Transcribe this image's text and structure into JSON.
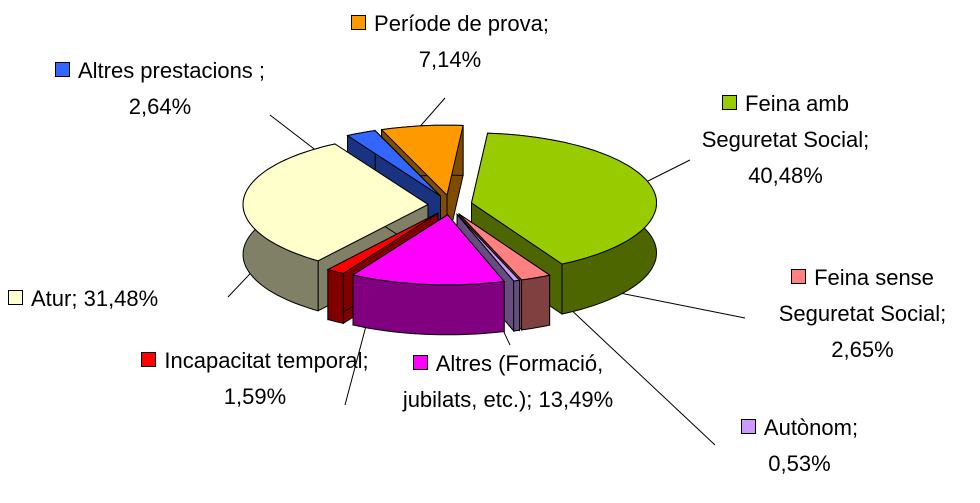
{
  "chart_data": {
    "type": "pie",
    "three_d": true,
    "exploded": true,
    "categories": [
      "Feina amb Seguretat Social;",
      "Feina sense Seguretat Social;",
      "Autònom;",
      "Altres (Formació, jubilats, etc.);",
      "Incapacitat temporal;",
      "Atur;",
      "Altres prestacions ;",
      "Període de prova;"
    ],
    "values": [
      40.48,
      2.65,
      0.53,
      13.49,
      1.59,
      31.48,
      2.64,
      7.14
    ],
    "value_labels": [
      "40,48%",
      "2,65%",
      "0,53%",
      "13,49%",
      "1,59%",
      "31,48%",
      "2,64%",
      "7,14%"
    ],
    "colors": [
      "#99cc00",
      "#ff8080",
      "#cc99ff",
      "#ff00ff",
      "#ff0000",
      "#ffffcc",
      "#3366ff",
      "#ff9900"
    ]
  }
}
